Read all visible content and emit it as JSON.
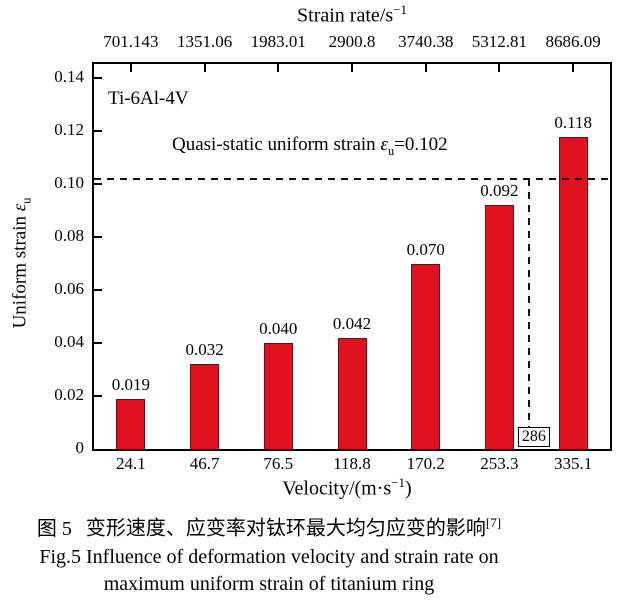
{
  "figure": {
    "material_label": "Ti-6Al-4V",
    "annotation": {
      "prefix": "Quasi-static uniform strain ",
      "symbol": "ε",
      "sub": "u",
      "suffix": "=0.102"
    }
  },
  "axes": {
    "top_title": {
      "text": "Strain rate/s",
      "sup": "−1"
    },
    "x_title": {
      "pre": "Velocity/(m·s",
      "sup": "−1",
      "post": ")"
    },
    "y_title": {
      "text": "Uniform strain ",
      "symbol": "ε",
      "sub": "u"
    }
  },
  "chart_data": {
    "type": "bar",
    "title": "",
    "xlabel": "Velocity/(m·s⁻¹)",
    "top_xlabel": "Strain rate/s⁻¹",
    "ylabel": "Uniform strain εu",
    "categories": [
      "24.1",
      "46.7",
      "76.5",
      "118.8",
      "170.2",
      "253.3",
      "335.1"
    ],
    "top_categories": [
      "701.143",
      "1351.06",
      "1983.01",
      "2900.8",
      "3740.38",
      "5312.81",
      "8686.09"
    ],
    "values": [
      0.019,
      0.032,
      0.04,
      0.042,
      0.07,
      0.092,
      0.118
    ],
    "value_labels": [
      "0.019",
      "0.032",
      "0.040",
      "0.042",
      "0.070",
      "0.092",
      "0.118"
    ],
    "ylim": [
      0,
      0.1454
    ],
    "yticks": [
      {
        "v": 0,
        "label": "0"
      },
      {
        "v": 0.02,
        "label": "0.02"
      },
      {
        "v": 0.04,
        "label": "0.04"
      },
      {
        "v": 0.06,
        "label": "0.06"
      },
      {
        "v": 0.08,
        "label": "0.08"
      },
      {
        "v": 0.1,
        "label": "0.10"
      },
      {
        "v": 0.12,
        "label": "0.12"
      },
      {
        "v": 0.14,
        "label": "0.14"
      }
    ],
    "reference_line": {
      "value": 0.102,
      "style": "dashed"
    },
    "marker": {
      "velocity": 286,
      "label": "286"
    },
    "bar_color": "#e01220",
    "bar_edge_color": "#6e0f0f",
    "grid": false,
    "legend": null
  },
  "caption": {
    "line1_zh_prefix": "图 5",
    "line1_zh": "变形速度、应变率对钛环最大均匀应变的影响",
    "line1_sup": "[7]",
    "line2_en": "Fig.5 Influence of deformation velocity and strain rate on",
    "line3_en": "maximum uniform strain of titanium ring"
  }
}
